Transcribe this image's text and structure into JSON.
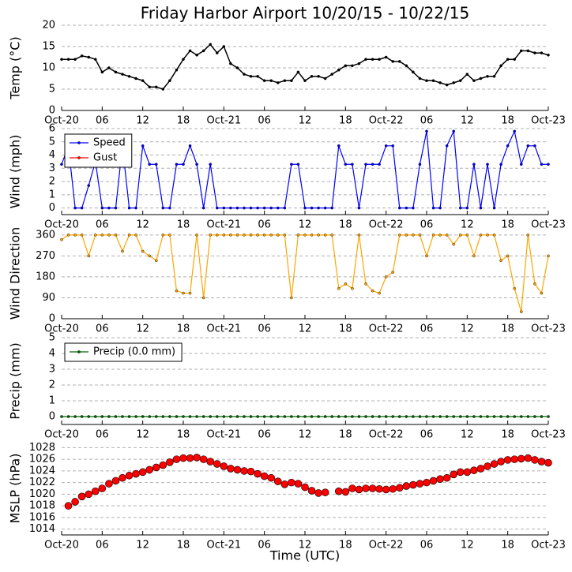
{
  "chart_data": [
    {
      "type": "line",
      "title": "Friday Harbor Airport 10/20/15 - 10/22/15",
      "ylabel": "Temp (°C)",
      "x": [
        0,
        1,
        2,
        3,
        4,
        5,
        6,
        7,
        8,
        9,
        10,
        11,
        12,
        13,
        14,
        15,
        16,
        17,
        18,
        19,
        20,
        21,
        22,
        23,
        24,
        25,
        26,
        27,
        28,
        29,
        30,
        31,
        32,
        33,
        34,
        35,
        36,
        37,
        38,
        39,
        40,
        41,
        42,
        43,
        44,
        45,
        46,
        47,
        48,
        49,
        50,
        51,
        52,
        53,
        54,
        55,
        56,
        57,
        58,
        59,
        60,
        61,
        62,
        63,
        64,
        65,
        66,
        67,
        68,
        69,
        70,
        71,
        72
      ],
      "series": [
        {
          "color": "#000000",
          "marker": "dot",
          "values": [
            12,
            12,
            12,
            12.8,
            12.5,
            12,
            9,
            10,
            9,
            8.5,
            8,
            7.5,
            7,
            5.5,
            5.5,
            5,
            7,
            9.5,
            12,
            14,
            13,
            14,
            15.5,
            13.5,
            15,
            11,
            10,
            8.5,
            8,
            8,
            7,
            7,
            6.5,
            7,
            7,
            9,
            7,
            8,
            8,
            7.5,
            8.5,
            9.5,
            10.5,
            10.5,
            11,
            12,
            12,
            12,
            12.5,
            11.5,
            11.5,
            10.5,
            9,
            7.5,
            7,
            7,
            6.5,
            6,
            6.5,
            7,
            8.5,
            7,
            7.5,
            8,
            8,
            10.5,
            12,
            12,
            14,
            14,
            13.5,
            13.5,
            13
          ]
        }
      ],
      "xlim": [
        0,
        72
      ],
      "xticks": [
        {
          "value": 0,
          "label": "Oct-20"
        },
        {
          "value": 6,
          "label": "06"
        },
        {
          "value": 12,
          "label": "12"
        },
        {
          "value": 18,
          "label": "18"
        },
        {
          "value": 24,
          "label": "Oct-21"
        },
        {
          "value": 30,
          "label": "06"
        },
        {
          "value": 36,
          "label": "12"
        },
        {
          "value": 42,
          "label": "18"
        },
        {
          "value": 48,
          "label": "Oct-22"
        },
        {
          "value": 54,
          "label": "06"
        },
        {
          "value": 60,
          "label": "12"
        },
        {
          "value": 66,
          "label": "18"
        },
        {
          "value": 72,
          "label": "Oct-23"
        }
      ],
      "ylim": [
        0,
        20
      ],
      "yticks": [
        0,
        5,
        10,
        15,
        20
      ],
      "grid": true
    },
    {
      "type": "line",
      "ylabel": "Wind (mph)",
      "legend": "upper left",
      "x": [
        0,
        1,
        2,
        3,
        4,
        5,
        6,
        7,
        8,
        9,
        10,
        11,
        12,
        13,
        14,
        15,
        16,
        17,
        18,
        19,
        20,
        21,
        22,
        23,
        24,
        25,
        26,
        27,
        28,
        29,
        30,
        31,
        32,
        33,
        34,
        35,
        36,
        37,
        38,
        39,
        40,
        41,
        42,
        43,
        44,
        45,
        46,
        47,
        48,
        49,
        50,
        51,
        52,
        53,
        54,
        55,
        56,
        57,
        58,
        59,
        60,
        61,
        62,
        63,
        64,
        65,
        66,
        67,
        68,
        69,
        70,
        71,
        72
      ],
      "series": [
        {
          "name": "Speed",
          "color": "#0000ff",
          "marker": "dot",
          "values": [
            3.3,
            4.7,
            0,
            0,
            1.7,
            3.5,
            0,
            0,
            0,
            4.7,
            0,
            0,
            4.7,
            3.3,
            3.3,
            0,
            0,
            3.3,
            3.3,
            4.7,
            3.3,
            0,
            3.3,
            0,
            0,
            0,
            0,
            0,
            0,
            0,
            0,
            0,
            0,
            0,
            3.3,
            3.3,
            0,
            0,
            0,
            0,
            0,
            4.7,
            3.3,
            3.3,
            0,
            3.3,
            3.3,
            3.3,
            4.7,
            4.7,
            0,
            0,
            0,
            3.3,
            5.8,
            0,
            0,
            4.7,
            5.8,
            0,
            0,
            3.3,
            0,
            3.3,
            0,
            3.3,
            4.7,
            5.8,
            3.3,
            4.7,
            4.7,
            3.3,
            3.3
          ]
        },
        {
          "name": "Gust",
          "color": "#ff0000",
          "marker": "dot",
          "values": [
            null,
            null,
            null,
            null,
            null,
            null,
            null,
            null,
            null,
            null,
            null,
            null,
            null,
            null,
            null,
            null,
            null,
            null,
            null,
            null,
            null,
            null,
            null,
            null,
            null,
            null,
            null,
            null,
            null,
            null,
            null,
            null,
            null,
            null,
            null,
            null,
            null,
            null,
            null,
            null,
            null,
            null,
            null,
            null,
            null,
            null,
            null,
            null,
            null,
            null,
            null,
            null,
            null,
            null,
            null,
            null,
            null,
            null,
            null,
            null,
            null,
            null,
            null,
            null,
            null,
            null,
            null,
            null,
            null,
            null,
            null,
            null,
            null
          ]
        }
      ],
      "xlim": [
        0,
        72
      ],
      "xticks": [
        {
          "value": 0,
          "label": "Oct-20"
        },
        {
          "value": 6,
          "label": "06"
        },
        {
          "value": 12,
          "label": "12"
        },
        {
          "value": 18,
          "label": "18"
        },
        {
          "value": 24,
          "label": "Oct-21"
        },
        {
          "value": 30,
          "label": "06"
        },
        {
          "value": 36,
          "label": "12"
        },
        {
          "value": 42,
          "label": "18"
        },
        {
          "value": 48,
          "label": "Oct-22"
        },
        {
          "value": 54,
          "label": "06"
        },
        {
          "value": 60,
          "label": "12"
        },
        {
          "value": 66,
          "label": "18"
        },
        {
          "value": 72,
          "label": "Oct-23"
        }
      ],
      "ylim": [
        -0.5,
        6
      ],
      "yticks": [
        0,
        1,
        2,
        3,
        4,
        5,
        6
      ],
      "grid": true
    },
    {
      "type": "line",
      "ylabel": "Wind Direction",
      "x": [
        0,
        1,
        2,
        3,
        4,
        5,
        6,
        7,
        8,
        9,
        10,
        11,
        12,
        13,
        14,
        15,
        16,
        17,
        18,
        19,
        20,
        21,
        22,
        23,
        24,
        25,
        26,
        27,
        28,
        29,
        30,
        31,
        32,
        33,
        34,
        35,
        36,
        37,
        38,
        39,
        40,
        41,
        42,
        43,
        44,
        45,
        46,
        47,
        48,
        49,
        50,
        51,
        52,
        53,
        54,
        55,
        56,
        57,
        58,
        59,
        60,
        61,
        62,
        63,
        64,
        65,
        66,
        67,
        68,
        69,
        70,
        71,
        72
      ],
      "series": [
        {
          "color": "#ffa500",
          "marker": "dot",
          "values": [
            340,
            360,
            360,
            360,
            270,
            360,
            360,
            360,
            360,
            290,
            360,
            360,
            290,
            270,
            250,
            360,
            360,
            120,
            110,
            110,
            360,
            90,
            360,
            360,
            360,
            360,
            360,
            360,
            360,
            360,
            360,
            360,
            360,
            360,
            90,
            360,
            360,
            360,
            360,
            360,
            360,
            130,
            150,
            130,
            360,
            150,
            120,
            110,
            180,
            200,
            360,
            360,
            360,
            360,
            270,
            360,
            360,
            360,
            320,
            360,
            360,
            270,
            360,
            360,
            360,
            250,
            270,
            130,
            30,
            360,
            150,
            110,
            270
          ]
        }
      ],
      "xlim": [
        0,
        72
      ],
      "xticks": [
        {
          "value": 0,
          "label": "Oct-20"
        },
        {
          "value": 6,
          "label": "06"
        },
        {
          "value": 12,
          "label": "12"
        },
        {
          "value": 18,
          "label": "18"
        },
        {
          "value": 24,
          "label": "Oct-21"
        },
        {
          "value": 30,
          "label": "06"
        },
        {
          "value": 36,
          "label": "12"
        },
        {
          "value": 42,
          "label": "18"
        },
        {
          "value": 48,
          "label": "Oct-22"
        },
        {
          "value": 54,
          "label": "06"
        },
        {
          "value": 60,
          "label": "12"
        },
        {
          "value": 66,
          "label": "18"
        },
        {
          "value": 72,
          "label": "Oct-23"
        }
      ],
      "ylim": [
        0,
        390
      ],
      "yticks": [
        0,
        90,
        180,
        270,
        360
      ],
      "grid": true
    },
    {
      "type": "line",
      "ylabel": "Precip (mm)",
      "legend": "upper left",
      "x": [
        0,
        1,
        2,
        3,
        4,
        5,
        6,
        7,
        8,
        9,
        10,
        11,
        12,
        13,
        14,
        15,
        16,
        17,
        18,
        19,
        20,
        21,
        22,
        23,
        24,
        25,
        26,
        27,
        28,
        29,
        30,
        31,
        32,
        33,
        34,
        35,
        36,
        37,
        38,
        39,
        40,
        41,
        42,
        43,
        44,
        45,
        46,
        47,
        48,
        49,
        50,
        51,
        52,
        53,
        54,
        55,
        56,
        57,
        58,
        59,
        60,
        61,
        62,
        63,
        64,
        65,
        66,
        67,
        68,
        69,
        70,
        71,
        72
      ],
      "series": [
        {
          "name": "Precip (0.0 mm)",
          "color": "#006400",
          "marker": "dot",
          "values": [
            0,
            0,
            0,
            0,
            0,
            0,
            0,
            0,
            0,
            0,
            0,
            0,
            0,
            0,
            0,
            0,
            0,
            0,
            0,
            0,
            0,
            0,
            0,
            0,
            0,
            0,
            0,
            0,
            0,
            0,
            0,
            0,
            0,
            0,
            0,
            0,
            0,
            0,
            0,
            0,
            0,
            0,
            0,
            0,
            0,
            0,
            0,
            0,
            0,
            0,
            0,
            0,
            0,
            0,
            0,
            0,
            0,
            0,
            0,
            0,
            0,
            0,
            0,
            0,
            0,
            0,
            0,
            0,
            0,
            0,
            0,
            0,
            0
          ]
        }
      ],
      "xlim": [
        0,
        72
      ],
      "xticks": [
        {
          "value": 0,
          "label": "Oct-20"
        },
        {
          "value": 6,
          "label": "06"
        },
        {
          "value": 12,
          "label": "12"
        },
        {
          "value": 18,
          "label": "18"
        },
        {
          "value": 24,
          "label": "Oct-21"
        },
        {
          "value": 30,
          "label": "06"
        },
        {
          "value": 36,
          "label": "12"
        },
        {
          "value": 42,
          "label": "18"
        },
        {
          "value": 48,
          "label": "Oct-22"
        },
        {
          "value": 54,
          "label": "06"
        },
        {
          "value": 60,
          "label": "12"
        },
        {
          "value": 66,
          "label": "18"
        },
        {
          "value": 72,
          "label": "Oct-23"
        }
      ],
      "ylim": [
        -0.5,
        5
      ],
      "yticks": [
        0,
        1,
        2,
        3,
        4,
        5
      ],
      "grid": true
    },
    {
      "type": "scatter",
      "ylabel": "MSLP (hPa)",
      "xlabel": "Time (UTC)",
      "x": [
        1,
        2,
        3,
        4,
        5,
        6,
        7,
        8,
        9,
        10,
        11,
        12,
        13,
        14,
        15,
        16,
        17,
        18,
        19,
        20,
        21,
        22,
        23,
        24,
        25,
        26,
        27,
        28,
        29,
        30,
        31,
        32,
        33,
        34,
        35,
        36,
        37,
        38,
        39,
        40,
        41,
        42,
        43,
        44,
        45,
        46,
        47,
        48,
        49,
        50,
        51,
        52,
        53,
        54,
        55,
        56,
        57,
        58,
        59,
        60,
        61,
        62,
        63,
        64,
        65,
        66,
        67,
        68,
        69,
        70,
        71,
        72
      ],
      "series": [
        {
          "color": "#ff0000",
          "values": [
            1018,
            1018.7,
            1019.6,
            1020,
            1020.5,
            1021,
            1021.8,
            1022.3,
            1022.8,
            1023.2,
            1023.5,
            1023.8,
            1024.2,
            1024.6,
            1025,
            1025.5,
            1026,
            1026.2,
            1026.2,
            1026.3,
            1026,
            1025.6,
            1025.2,
            1024.8,
            1024.4,
            1024.2,
            1024,
            1023.9,
            1023.5,
            1023.1,
            1022.8,
            1022.2,
            1021.7,
            1022,
            1021.8,
            1021.2,
            1020.6,
            1020.2,
            1020.3,
            null,
            1020.5,
            1020.4,
            1021,
            1020.8,
            1021,
            1021,
            1020.9,
            1020.8,
            1020.9,
            1021.1,
            1021.4,
            1021.6,
            1021.8,
            1022,
            1022.3,
            1022.6,
            1022.8,
            1023.4,
            1023.8,
            1023.8,
            1024.1,
            1024.4,
            1024.8,
            1025.2,
            1025.6,
            1025.9,
            1026,
            1026.1,
            1026.2,
            1025.9,
            1025.6,
            1025.4
          ]
        }
      ],
      "xlim": [
        0,
        72
      ],
      "xticks": [
        {
          "value": 0,
          "label": "Oct-20"
        },
        {
          "value": 6,
          "label": "06"
        },
        {
          "value": 12,
          "label": "12"
        },
        {
          "value": 18,
          "label": "18"
        },
        {
          "value": 24,
          "label": "Oct-21"
        },
        {
          "value": 30,
          "label": "06"
        },
        {
          "value": 36,
          "label": "12"
        },
        {
          "value": 42,
          "label": "18"
        },
        {
          "value": 48,
          "label": "Oct-22"
        },
        {
          "value": 54,
          "label": "06"
        },
        {
          "value": 60,
          "label": "12"
        },
        {
          "value": 66,
          "label": "18"
        },
        {
          "value": 72,
          "label": "Oct-23"
        }
      ],
      "ylim": [
        1013,
        1029
      ],
      "yticks": [
        1014,
        1016,
        1018,
        1020,
        1022,
        1024,
        1026,
        1028
      ],
      "grid": true
    }
  ]
}
